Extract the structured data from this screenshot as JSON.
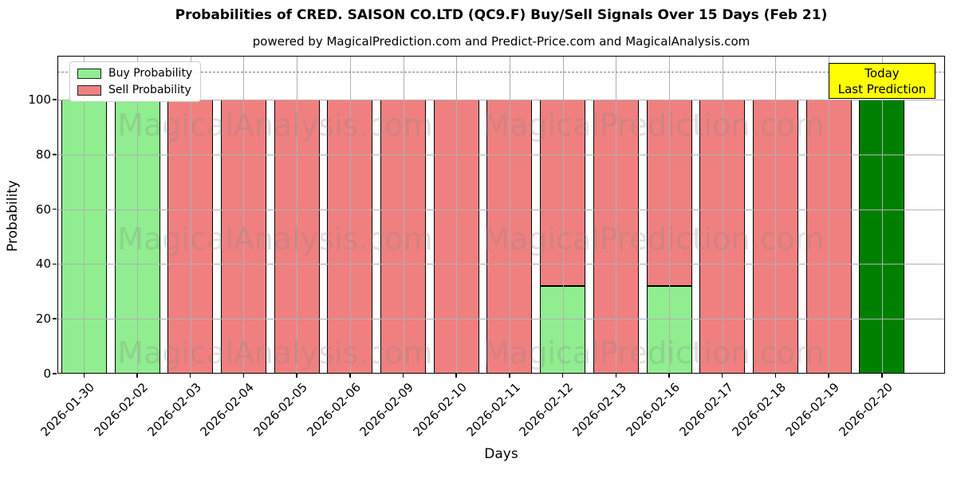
{
  "chart_data": {
    "type": "bar",
    "stacked": true,
    "title": "Probabilities of CRED. SAISON CO.LTD (QC9.F) Buy/Sell Signals Over 15 Days (Feb 21)",
    "subtitle": "powered by MagicalPrediction.com and Predict-Price.com and MagicalAnalysis.com",
    "xlabel": "Days",
    "ylabel": "Probability",
    "ylim": [
      0,
      116
    ],
    "yticks": [
      0,
      20,
      40,
      60,
      80,
      100
    ],
    "grid": true,
    "dashed_line_y": 110,
    "legend_position": "upper-left",
    "legend": [
      {
        "label": "Buy Probability",
        "color": "#90EE90"
      },
      {
        "label": "Sell Probability",
        "color": "#F08080"
      }
    ],
    "annotation": {
      "lines": [
        "Today",
        "Last Prediction"
      ],
      "bg": "#FFFF00"
    },
    "watermarks": [
      "MagicalAnalysis.com",
      "MagicalPrediction.com"
    ],
    "colors": {
      "buy": "#90EE90",
      "sell": "#F08080",
      "today": "#008000",
      "edge": "#000000"
    },
    "categories": [
      "2026-01-30",
      "2026-02-02",
      "2026-02-03",
      "2026-02-04",
      "2026-02-05",
      "2026-02-06",
      "2026-02-09",
      "2026-02-10",
      "2026-02-11",
      "2026-02-12",
      "2026-02-13",
      "2026-02-16",
      "2026-02-17",
      "2026-02-18",
      "2026-02-19",
      "2026-02-20"
    ],
    "series": [
      {
        "name": "Buy Probability",
        "values": [
          100,
          100,
          0,
          0,
          0,
          0,
          0,
          0,
          0,
          32,
          0,
          32,
          0,
          0,
          0,
          100
        ]
      },
      {
        "name": "Sell Probability",
        "values": [
          0,
          0,
          100,
          100,
          100,
          100,
          100,
          100,
          100,
          68,
          100,
          68,
          100,
          100,
          100,
          0
        ]
      }
    ],
    "today_index": 15
  }
}
